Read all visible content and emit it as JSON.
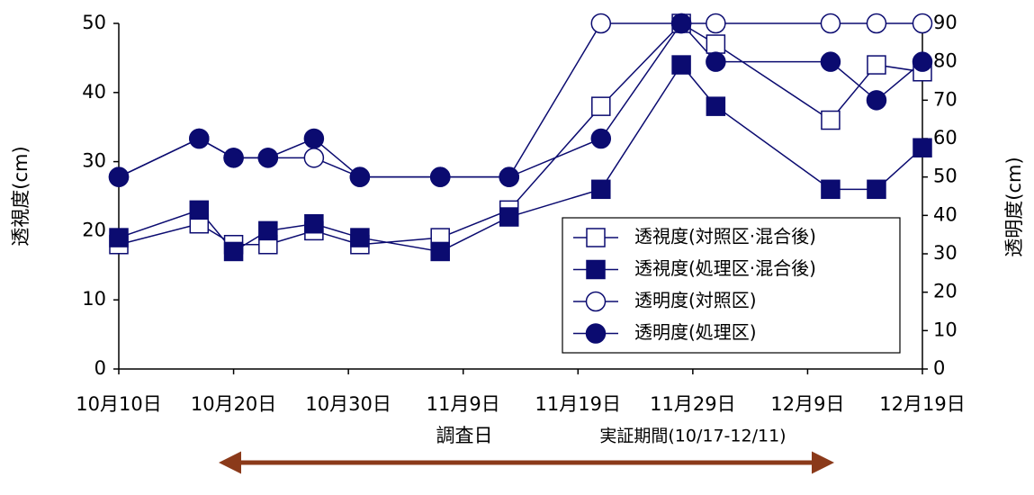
{
  "chart_data": {
    "type": "line",
    "ylabel": "透視度(cm)",
    "y2label": "透明度(cm)",
    "xlabel": "調査日",
    "annotation": "実証期間(10/17-12/11)",
    "x": [
      "10月10日",
      "10月17日",
      "10月20日",
      "10月23日",
      "10月27日",
      "10月31日",
      "11月7日",
      "11月13日",
      "11月21日",
      "11月28日",
      "12月1日",
      "12月11日",
      "12月15日",
      "12月19日"
    ],
    "xlim": [
      "10月10日",
      "12月19日"
    ],
    "xticks": [
      "10月10日",
      "10月20日",
      "10月30日",
      "11月9日",
      "11月19日",
      "11月29日",
      "12月9日",
      "12月19日"
    ],
    "ylim": [
      0,
      50
    ],
    "yticks": [
      0,
      10,
      20,
      30,
      40,
      50
    ],
    "y2lim": [
      0,
      90
    ],
    "y2ticks": [
      0,
      10,
      20,
      30,
      40,
      50,
      60,
      70,
      80,
      90
    ],
    "legend": "lower right",
    "series": [
      {
        "name": "透視度(対照区·混合後)",
        "color": "#0b0b70",
        "marker": "square",
        "filled": false,
        "values": [
          18,
          21,
          18,
          18,
          20,
          18,
          19,
          23,
          38,
          50,
          47,
          36,
          44,
          43
        ]
      },
      {
        "name": "透視度(処理区·混合後)",
        "color": "#0b0b70",
        "marker": "square",
        "filled": true,
        "values": [
          19,
          23,
          17,
          20,
          21,
          19,
          17,
          22,
          26,
          44,
          38,
          26,
          26,
          32
        ]
      },
      {
        "name": "透明度(対照区)",
        "color": "#0b0b70",
        "marker": "circle",
        "filled": false,
        "axis": "y2",
        "values": [
          50,
          60,
          55,
          55,
          55,
          50,
          50,
          50,
          90,
          90,
          90,
          90,
          90,
          90
        ]
      },
      {
        "name": "透明度(処理区)",
        "color": "#0b0b70",
        "marker": "circle",
        "filled": true,
        "axis": "y2",
        "values": [
          50,
          60,
          55,
          55,
          60,
          50,
          50,
          50,
          60,
          90,
          80,
          80,
          70,
          80
        ]
      }
    ]
  }
}
